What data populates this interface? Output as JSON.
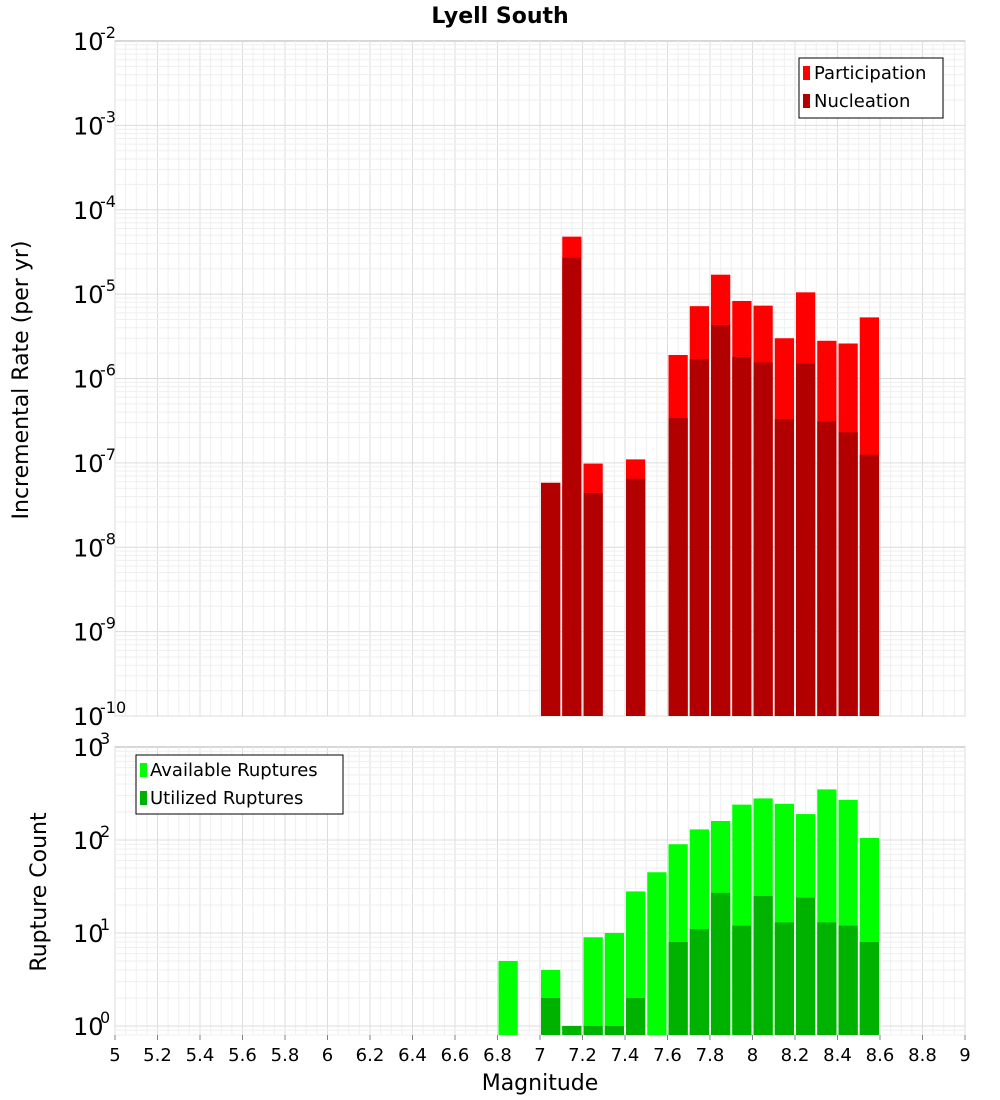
{
  "title": "Lyell South",
  "xlabel": "Magnitude",
  "x_ticks": [
    "5",
    "5.2",
    "5.4",
    "5.6",
    "5.8",
    "6",
    "6.2",
    "6.4",
    "6.6",
    "6.8",
    "7",
    "7.2",
    "7.4",
    "7.6",
    "7.8",
    "8",
    "8.2",
    "8.4",
    "8.6",
    "8.8",
    "9"
  ],
  "colors": {
    "participation": "#ff0000",
    "nucleation": "#b20000",
    "available": "#00ff00",
    "utilized": "#00b200"
  },
  "chart_data": [
    {
      "type": "bar",
      "ylabel": "Incremental Rate (per yr)",
      "yscale": "log",
      "ylim": [
        1e-10,
        0.01
      ],
      "xlim": [
        5,
        9
      ],
      "y_ticks": [
        {
          "base": "10",
          "exp": "-10",
          "value": 1e-10
        },
        {
          "base": "10",
          "exp": "-9",
          "value": 1e-09
        },
        {
          "base": "10",
          "exp": "-8",
          "value": 1e-08
        },
        {
          "base": "10",
          "exp": "-7",
          "value": 1e-07
        },
        {
          "base": "10",
          "exp": "-6",
          "value": 1e-06
        },
        {
          "base": "10",
          "exp": "-5",
          "value": 1e-05
        },
        {
          "base": "10",
          "exp": "-4",
          "value": 0.0001
        },
        {
          "base": "10",
          "exp": "-3",
          "value": 0.001
        },
        {
          "base": "10",
          "exp": "-2",
          "value": 0.01
        }
      ],
      "legend": [
        "Participation",
        "Nucleation"
      ],
      "legend_position": "top-right",
      "grid": true,
      "series": [
        {
          "name": "Participation",
          "x": [
            7.05,
            7.15,
            7.25,
            7.45,
            7.65,
            7.75,
            7.85,
            7.95,
            8.05,
            8.15,
            8.25,
            8.35,
            8.45,
            8.55
          ],
          "values": [
            5.8e-08,
            4.8e-05,
            9.8e-08,
            1.1e-07,
            1.9e-06,
            7.2e-06,
            1.7e-05,
            8.3e-06,
            7.3e-06,
            3e-06,
            1.05e-05,
            2.8e-06,
            2.6e-06,
            5.3e-06
          ]
        },
        {
          "name": "Nucleation",
          "x": [
            7.05,
            7.15,
            7.25,
            7.45,
            7.65,
            7.75,
            7.85,
            7.95,
            8.05,
            8.15,
            8.25,
            8.35,
            8.45,
            8.55
          ],
          "values": [
            5.8e-08,
            2.7e-05,
            4.4e-08,
            6.5e-08,
            3.4e-07,
            1.7e-06,
            4.3e-06,
            1.8e-06,
            1.55e-06,
            3.3e-07,
            1.5e-06,
            3.1e-07,
            2.3e-07,
            1.25e-07
          ]
        }
      ]
    },
    {
      "type": "bar",
      "ylabel": "Rupture Count",
      "yscale": "log",
      "ylim": [
        0.8,
        1000
      ],
      "xlim": [
        5,
        9
      ],
      "y_ticks": [
        {
          "base": "10",
          "exp": "0",
          "value": 1
        },
        {
          "base": "10",
          "exp": "1",
          "value": 10
        },
        {
          "base": "10",
          "exp": "2",
          "value": 100
        },
        {
          "base": "10",
          "exp": "3",
          "value": 1000
        }
      ],
      "legend": [
        "Available Ruptures",
        "Utilized Ruptures"
      ],
      "legend_position": "top-left",
      "grid": true,
      "series": [
        {
          "name": "Available Ruptures",
          "x": [
            6.85,
            7.05,
            7.15,
            7.25,
            7.35,
            7.45,
            7.55,
            7.65,
            7.75,
            7.85,
            7.95,
            8.05,
            8.15,
            8.25,
            8.35,
            8.45,
            8.55
          ],
          "values": [
            5,
            4,
            1,
            9,
            10,
            28,
            45,
            90,
            130,
            160,
            240,
            280,
            245,
            190,
            350,
            270,
            105
          ]
        },
        {
          "name": "Utilized Ruptures",
          "x": [
            7.05,
            7.15,
            7.25,
            7.35,
            7.45,
            7.65,
            7.75,
            7.85,
            7.95,
            8.05,
            8.15,
            8.25,
            8.35,
            8.45,
            8.55
          ],
          "values": [
            2,
            1,
            1,
            1,
            2,
            8,
            11,
            27,
            12,
            25,
            13,
            24,
            13,
            12,
            8
          ]
        }
      ]
    }
  ]
}
